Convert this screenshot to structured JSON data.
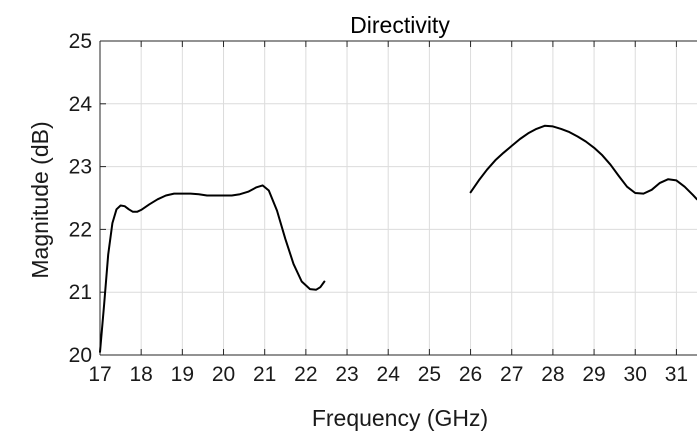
{
  "chart_data": {
    "type": "line",
    "title": "Directivity",
    "xlabel": "Frequency (GHz)",
    "ylabel": "Magnitude (dB)",
    "xlim": [
      17,
      31.5
    ],
    "ylim": [
      20,
      25
    ],
    "x_ticks": [
      17,
      18,
      19,
      20,
      21,
      22,
      23,
      24,
      25,
      26,
      27,
      28,
      29,
      30,
      31
    ],
    "y_ticks": [
      20,
      21,
      22,
      23,
      24,
      25
    ],
    "grid": true,
    "line_color": "#000000",
    "series": [
      {
        "points": [
          [
            17.0,
            20.05
          ],
          [
            17.1,
            20.8
          ],
          [
            17.2,
            21.6
          ],
          [
            17.3,
            22.1
          ],
          [
            17.4,
            22.32
          ],
          [
            17.5,
            22.38
          ],
          [
            17.6,
            22.37
          ],
          [
            17.7,
            22.32
          ],
          [
            17.8,
            22.28
          ],
          [
            17.9,
            22.28
          ],
          [
            18.0,
            22.31
          ],
          [
            18.2,
            22.4
          ],
          [
            18.4,
            22.48
          ],
          [
            18.6,
            22.54
          ],
          [
            18.8,
            22.57
          ],
          [
            19.0,
            22.57
          ],
          [
            19.2,
            22.57
          ],
          [
            19.4,
            22.56
          ],
          [
            19.6,
            22.54
          ],
          [
            19.8,
            22.54
          ],
          [
            20.0,
            22.54
          ],
          [
            20.2,
            22.54
          ],
          [
            20.4,
            22.56
          ],
          [
            20.6,
            22.6
          ],
          [
            20.8,
            22.67
          ],
          [
            20.95,
            22.7
          ],
          [
            21.1,
            22.62
          ],
          [
            21.3,
            22.3
          ],
          [
            21.5,
            21.85
          ],
          [
            21.7,
            21.45
          ],
          [
            21.9,
            21.17
          ],
          [
            22.1,
            21.05
          ],
          [
            22.25,
            21.04
          ],
          [
            22.35,
            21.08
          ],
          [
            22.45,
            21.17
          ]
        ]
      },
      {
        "points": [
          [
            26.0,
            22.59
          ],
          [
            26.2,
            22.78
          ],
          [
            26.4,
            22.95
          ],
          [
            26.6,
            23.1
          ],
          [
            26.8,
            23.22
          ],
          [
            27.0,
            23.33
          ],
          [
            27.2,
            23.44
          ],
          [
            27.4,
            23.53
          ],
          [
            27.6,
            23.6
          ],
          [
            27.8,
            23.65
          ],
          [
            28.0,
            23.64
          ],
          [
            28.2,
            23.6
          ],
          [
            28.4,
            23.55
          ],
          [
            28.6,
            23.48
          ],
          [
            28.8,
            23.4
          ],
          [
            29.0,
            23.3
          ],
          [
            29.2,
            23.18
          ],
          [
            29.4,
            23.03
          ],
          [
            29.6,
            22.85
          ],
          [
            29.8,
            22.68
          ],
          [
            30.0,
            22.58
          ],
          [
            30.2,
            22.57
          ],
          [
            30.4,
            22.63
          ],
          [
            30.6,
            22.74
          ],
          [
            30.8,
            22.8
          ],
          [
            31.0,
            22.78
          ],
          [
            31.2,
            22.68
          ],
          [
            31.4,
            22.55
          ],
          [
            31.5,
            22.48
          ]
        ]
      }
    ]
  }
}
